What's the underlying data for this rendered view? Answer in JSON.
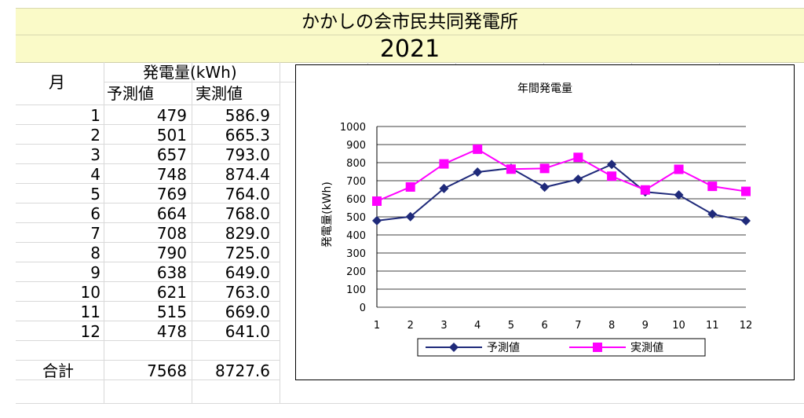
{
  "header": {
    "title": "かかしの会市民共同発電所",
    "year": "2021"
  },
  "table": {
    "month_header": "月",
    "energy_header": "発電量(kWh)",
    "predicted_header": "予測値",
    "actual_header": "実測値",
    "rows": [
      {
        "month": "1",
        "predicted": "479",
        "actual": "586.9"
      },
      {
        "month": "2",
        "predicted": "501",
        "actual": "665.3"
      },
      {
        "month": "3",
        "predicted": "657",
        "actual": "793.0"
      },
      {
        "month": "4",
        "predicted": "748",
        "actual": "874.4"
      },
      {
        "month": "5",
        "predicted": "769",
        "actual": "764.0"
      },
      {
        "month": "6",
        "predicted": "664",
        "actual": "768.0"
      },
      {
        "month": "7",
        "predicted": "708",
        "actual": "829.0"
      },
      {
        "month": "8",
        "predicted": "790",
        "actual": "725.0"
      },
      {
        "month": "9",
        "predicted": "638",
        "actual": "649.0"
      },
      {
        "month": "10",
        "predicted": "621",
        "actual": "763.0"
      },
      {
        "month": "11",
        "predicted": "515",
        "actual": "669.0"
      },
      {
        "month": "12",
        "predicted": "478",
        "actual": "641.0"
      }
    ],
    "total_label": "合計",
    "total_predicted": "7568",
    "total_actual": "8727.6"
  },
  "chart_data": {
    "type": "line",
    "title": "年間発電量",
    "xlabel": "",
    "ylabel": "発電量(kWh)",
    "categories": [
      "1",
      "2",
      "3",
      "4",
      "5",
      "6",
      "7",
      "8",
      "9",
      "10",
      "11",
      "12"
    ],
    "ylim": [
      0,
      1000
    ],
    "yticks": [
      0,
      100,
      200,
      300,
      400,
      500,
      600,
      700,
      800,
      900,
      1000
    ],
    "grid": true,
    "legend_position": "bottom",
    "series": [
      {
        "name": "予測値",
        "color": "#1f2a7a",
        "marker": "diamond",
        "values": [
          479,
          501,
          657,
          748,
          769,
          664,
          708,
          790,
          638,
          621,
          515,
          478
        ]
      },
      {
        "name": "実測値",
        "color": "#ff00ff",
        "marker": "square",
        "values": [
          586.9,
          665.3,
          793.0,
          874.4,
          764.0,
          768.0,
          829.0,
          725.0,
          649.0,
          763.0,
          669.0,
          641.0
        ]
      }
    ]
  }
}
